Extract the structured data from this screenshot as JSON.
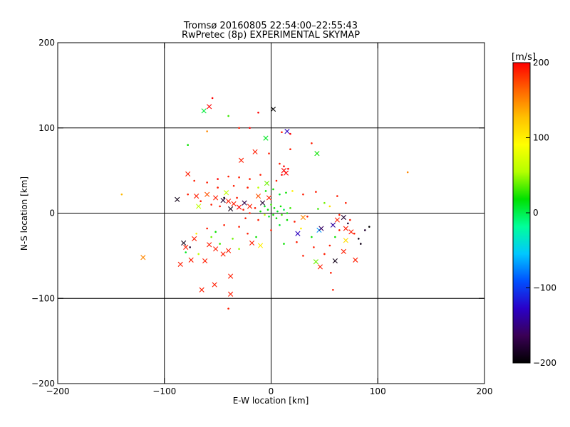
{
  "chart_data": {
    "type": "scatter",
    "title": "Tromsø 20160805 22:54:00–22:55:43",
    "subtitle": "RwPretec (8p) EXPERIMENTAL SKYMAP",
    "xlabel": "E-W location [km]",
    "ylabel": "N-S location [km]",
    "xlim": [
      -200,
      200
    ],
    "ylim": [
      -200,
      200
    ],
    "xticks": [
      -200,
      -100,
      0,
      100,
      200
    ],
    "yticks": [
      -200,
      -100,
      0,
      100,
      200
    ],
    "grid_lines": {
      "x": [
        -100,
        0,
        100
      ],
      "y": [
        -100,
        0,
        100
      ]
    },
    "colorbar": {
      "label": "[m/s]",
      "min": -200,
      "max": 200,
      "ticks": [
        -200,
        -100,
        0,
        100,
        200
      ],
      "stops": [
        "#000000",
        "#3a0055",
        "#2a00c8",
        "#0050ff",
        "#00c8ff",
        "#00ff9a",
        "#00e000",
        "#b4ff00",
        "#ffff00",
        "#ffc000",
        "#ff6400",
        "#ff0000"
      ]
    },
    "points_x": [
      {
        "x": -63,
        "y": 120,
        "v": 5
      },
      {
        "x": -58,
        "y": 125,
        "v": 200
      },
      {
        "x": 2,
        "y": 122,
        "v": -200
      },
      {
        "x": 15,
        "y": 96,
        "v": -130
      },
      {
        "x": -5,
        "y": 88,
        "v": 10
      },
      {
        "x": 43,
        "y": 70,
        "v": 20
      },
      {
        "x": -15,
        "y": 72,
        "v": 190
      },
      {
        "x": -28,
        "y": 62,
        "v": 190
      },
      {
        "x": -78,
        "y": 46,
        "v": 190
      },
      {
        "x": 12,
        "y": 50,
        "v": 200
      },
      {
        "x": 14,
        "y": 47,
        "v": 200
      },
      {
        "x": -4,
        "y": 35,
        "v": 40
      },
      {
        "x": -88,
        "y": 16,
        "v": -190
      },
      {
        "x": -70,
        "y": 20,
        "v": 190
      },
      {
        "x": -60,
        "y": 22,
        "v": 170
      },
      {
        "x": -52,
        "y": 18,
        "v": 190
      },
      {
        "x": -45,
        "y": 15,
        "v": -180
      },
      {
        "x": -40,
        "y": 14,
        "v": 190
      },
      {
        "x": -35,
        "y": 11,
        "v": 190
      },
      {
        "x": -30,
        "y": 7,
        "v": 200
      },
      {
        "x": -25,
        "y": 12,
        "v": -170
      },
      {
        "x": -20,
        "y": 8,
        "v": 190
      },
      {
        "x": -12,
        "y": 20,
        "v": 170
      },
      {
        "x": -8,
        "y": 12,
        "v": -180
      },
      {
        "x": -2,
        "y": 18,
        "v": 190
      },
      {
        "x": -38,
        "y": 5,
        "v": -190
      },
      {
        "x": -42,
        "y": 24,
        "v": 60
      },
      {
        "x": -68,
        "y": 8,
        "v": 60
      },
      {
        "x": -82,
        "y": -35,
        "v": -190
      },
      {
        "x": -80,
        "y": -40,
        "v": 190
      },
      {
        "x": -72,
        "y": -30,
        "v": 190
      },
      {
        "x": -62,
        "y": -56,
        "v": 190
      },
      {
        "x": -58,
        "y": -37,
        "v": 190
      },
      {
        "x": -52,
        "y": -42,
        "v": 190
      },
      {
        "x": -45,
        "y": -48,
        "v": 190
      },
      {
        "x": -40,
        "y": -44,
        "v": 190
      },
      {
        "x": -75,
        "y": -55,
        "v": 190
      },
      {
        "x": -85,
        "y": -60,
        "v": 190
      },
      {
        "x": -120,
        "y": -52,
        "v": 150
      },
      {
        "x": -65,
        "y": -90,
        "v": 190
      },
      {
        "x": -53,
        "y": -84,
        "v": 190
      },
      {
        "x": -38,
        "y": -74,
        "v": 190
      },
      {
        "x": -38,
        "y": -95,
        "v": 190
      },
      {
        "x": -18,
        "y": -35,
        "v": 190
      },
      {
        "x": -10,
        "y": -38,
        "v": 100
      },
      {
        "x": 25,
        "y": -24,
        "v": -130
      },
      {
        "x": 30,
        "y": -5,
        "v": 150
      },
      {
        "x": 45,
        "y": -20,
        "v": -70
      },
      {
        "x": 47,
        "y": -18,
        "v": -160
      },
      {
        "x": 58,
        "y": -14,
        "v": -140
      },
      {
        "x": 62,
        "y": -8,
        "v": 190
      },
      {
        "x": 68,
        "y": -5,
        "v": -180
      },
      {
        "x": 70,
        "y": -18,
        "v": 190
      },
      {
        "x": 75,
        "y": -22,
        "v": 190
      },
      {
        "x": 70,
        "y": -32,
        "v": 110
      },
      {
        "x": 68,
        "y": -45,
        "v": 190
      },
      {
        "x": 42,
        "y": -57,
        "v": 40
      },
      {
        "x": 46,
        "y": -63,
        "v": 190
      },
      {
        "x": 79,
        "y": -55,
        "v": 190
      },
      {
        "x": 60,
        "y": -56,
        "v": -190
      }
    ],
    "points_dot": [
      {
        "x": -55,
        "y": 135,
        "v": 200
      },
      {
        "x": -60,
        "y": 96,
        "v": 150
      },
      {
        "x": -40,
        "y": 114,
        "v": 30
      },
      {
        "x": -30,
        "y": 100,
        "v": 190
      },
      {
        "x": -12,
        "y": 118,
        "v": 200
      },
      {
        "x": -20,
        "y": 100,
        "v": 200
      },
      {
        "x": 10,
        "y": 95,
        "v": 190
      },
      {
        "x": 18,
        "y": 93,
        "v": 200
      },
      {
        "x": -78,
        "y": 80,
        "v": 20
      },
      {
        "x": -2,
        "y": 70,
        "v": 190
      },
      {
        "x": 18,
        "y": 75,
        "v": 190
      },
      {
        "x": 38,
        "y": 82,
        "v": 190
      },
      {
        "x": 8,
        "y": 58,
        "v": 190
      },
      {
        "x": 12,
        "y": 55,
        "v": 200
      },
      {
        "x": 16,
        "y": 52,
        "v": 200
      },
      {
        "x": 10,
        "y": 45,
        "v": 200
      },
      {
        "x": 5,
        "y": 38,
        "v": 190
      },
      {
        "x": -10,
        "y": 45,
        "v": 190
      },
      {
        "x": -20,
        "y": 40,
        "v": 190
      },
      {
        "x": -30,
        "y": 42,
        "v": 190
      },
      {
        "x": -40,
        "y": 43,
        "v": 190
      },
      {
        "x": -50,
        "y": 40,
        "v": 200
      },
      {
        "x": -60,
        "y": 36,
        "v": 190
      },
      {
        "x": -72,
        "y": 38,
        "v": 190
      },
      {
        "x": -50,
        "y": 30,
        "v": 190
      },
      {
        "x": -35,
        "y": 32,
        "v": 190
      },
      {
        "x": -22,
        "y": 30,
        "v": 190
      },
      {
        "x": -12,
        "y": 30,
        "v": 60
      },
      {
        "x": -5,
        "y": 26,
        "v": 20
      },
      {
        "x": 2,
        "y": 28,
        "v": 20
      },
      {
        "x": 8,
        "y": 22,
        "v": 10
      },
      {
        "x": 14,
        "y": 24,
        "v": 20
      },
      {
        "x": 20,
        "y": 26,
        "v": 100
      },
      {
        "x": 30,
        "y": 22,
        "v": 190
      },
      {
        "x": 42,
        "y": 25,
        "v": 190
      },
      {
        "x": 50,
        "y": 12,
        "v": 40
      },
      {
        "x": 55,
        "y": 8,
        "v": 110
      },
      {
        "x": 62,
        "y": 20,
        "v": 190
      },
      {
        "x": 70,
        "y": 12,
        "v": 190
      },
      {
        "x": 128,
        "y": 48,
        "v": 150
      },
      {
        "x": -140,
        "y": 22,
        "v": 130
      },
      {
        "x": -78,
        "y": 22,
        "v": 190
      },
      {
        "x": -66,
        "y": 14,
        "v": 190
      },
      {
        "x": -56,
        "y": 10,
        "v": 190
      },
      {
        "x": -48,
        "y": 8,
        "v": 190
      },
      {
        "x": -44,
        "y": 18,
        "v": -190
      },
      {
        "x": -32,
        "y": 18,
        "v": 190
      },
      {
        "x": -26,
        "y": 4,
        "v": 190
      },
      {
        "x": -20,
        "y": 0,
        "v": 190
      },
      {
        "x": -15,
        "y": 6,
        "v": 190
      },
      {
        "x": -10,
        "y": 2,
        "v": 20
      },
      {
        "x": -6,
        "y": 8,
        "v": 10
      },
      {
        "x": -3,
        "y": 4,
        "v": 20
      },
      {
        "x": 0,
        "y": 10,
        "v": 30
      },
      {
        "x": 3,
        "y": 6,
        "v": 20
      },
      {
        "x": 6,
        "y": 2,
        "v": 10
      },
      {
        "x": 9,
        "y": 8,
        "v": 20
      },
      {
        "x": 12,
        "y": 4,
        "v": 0
      },
      {
        "x": 15,
        "y": 0,
        "v": 20
      },
      {
        "x": 18,
        "y": 6,
        "v": 30
      },
      {
        "x": 2,
        "y": -2,
        "v": 20
      },
      {
        "x": -2,
        "y": -4,
        "v": 10
      },
      {
        "x": 5,
        "y": -6,
        "v": 20
      },
      {
        "x": 10,
        "y": -2,
        "v": 30
      },
      {
        "x": -6,
        "y": -2,
        "v": 60
      },
      {
        "x": -12,
        "y": -8,
        "v": 190
      },
      {
        "x": -24,
        "y": -6,
        "v": 190
      },
      {
        "x": -30,
        "y": -16,
        "v": 190
      },
      {
        "x": -44,
        "y": -14,
        "v": 190
      },
      {
        "x": -52,
        "y": -22,
        "v": 20
      },
      {
        "x": -60,
        "y": -18,
        "v": 190
      },
      {
        "x": -70,
        "y": -24,
        "v": 100
      },
      {
        "x": -76,
        "y": -40,
        "v": -180
      },
      {
        "x": -80,
        "y": -46,
        "v": 10
      },
      {
        "x": -68,
        "y": -48,
        "v": 60
      },
      {
        "x": -56,
        "y": -28,
        "v": 40
      },
      {
        "x": -48,
        "y": -36,
        "v": 30
      },
      {
        "x": -36,
        "y": -30,
        "v": 40
      },
      {
        "x": -30,
        "y": -42,
        "v": 50
      },
      {
        "x": -40,
        "y": -112,
        "v": 190
      },
      {
        "x": 0,
        "y": -20,
        "v": 190
      },
      {
        "x": 8,
        "y": -14,
        "v": 10
      },
      {
        "x": 15,
        "y": -8,
        "v": 20
      },
      {
        "x": 22,
        "y": -10,
        "v": 190
      },
      {
        "x": 28,
        "y": -18,
        "v": 100
      },
      {
        "x": 34,
        "y": -4,
        "v": 190
      },
      {
        "x": 38,
        "y": -28,
        "v": 20
      },
      {
        "x": 40,
        "y": -40,
        "v": 190
      },
      {
        "x": 50,
        "y": -48,
        "v": 190
      },
      {
        "x": 55,
        "y": -38,
        "v": 190
      },
      {
        "x": 60,
        "y": -28,
        "v": 20
      },
      {
        "x": 64,
        "y": -20,
        "v": 190
      },
      {
        "x": 72,
        "y": -12,
        "v": -180
      },
      {
        "x": 78,
        "y": -24,
        "v": 190
      },
      {
        "x": 82,
        "y": -30,
        "v": -190
      },
      {
        "x": 84,
        "y": -36,
        "v": -190
      },
      {
        "x": 88,
        "y": -20,
        "v": -180
      },
      {
        "x": 92,
        "y": -16,
        "v": -200
      },
      {
        "x": 74,
        "y": -8,
        "v": 190
      },
      {
        "x": 64,
        "y": -2,
        "v": 190
      },
      {
        "x": 56,
        "y": -70,
        "v": 190
      },
      {
        "x": 58,
        "y": -90,
        "v": 190
      },
      {
        "x": 30,
        "y": -50,
        "v": 190
      },
      {
        "x": 24,
        "y": -34,
        "v": 190
      },
      {
        "x": 12,
        "y": -36,
        "v": 20
      },
      {
        "x": -14,
        "y": -28,
        "v": 20
      },
      {
        "x": -22,
        "y": -24,
        "v": 190
      },
      {
        "x": 44,
        "y": 5,
        "v": 30
      }
    ]
  }
}
